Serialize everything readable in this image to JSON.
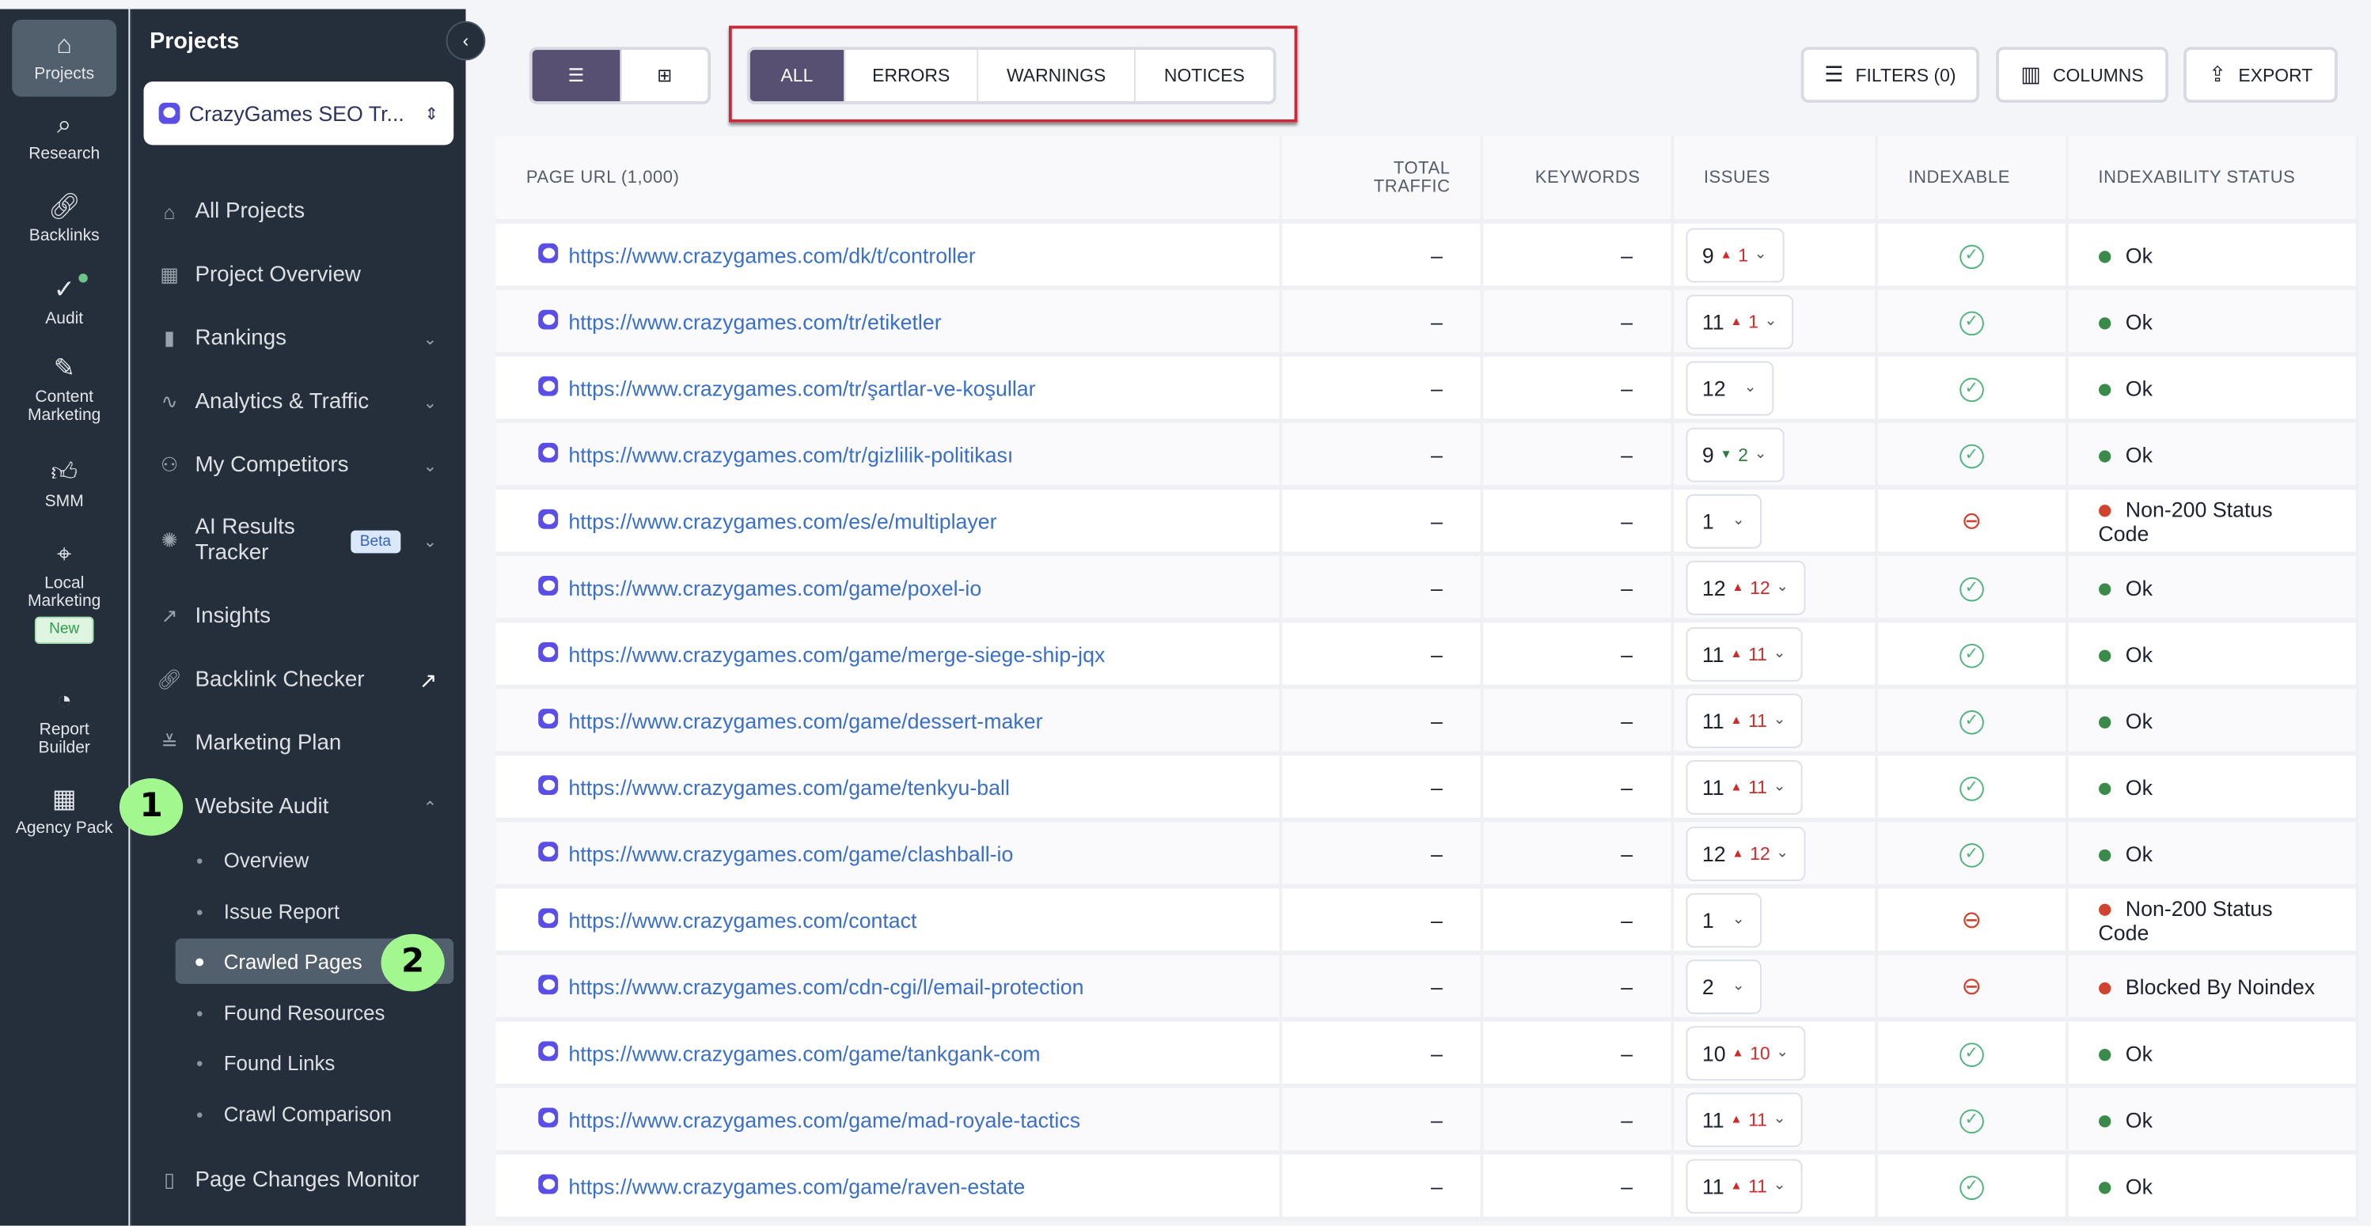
{
  "rail": [
    {
      "label": "Projects",
      "icon": "home-icon",
      "active": true
    },
    {
      "label": "Research",
      "icon": "laptop-search-icon"
    },
    {
      "label": "Backlinks",
      "icon": "link-icon"
    },
    {
      "label": "Audit",
      "icon": "check-circle-icon"
    },
    {
      "label": "Content Marketing",
      "icon": "edit-icon"
    },
    {
      "label": "SMM",
      "icon": "thumbs-up-icon"
    },
    {
      "label": "Local Marketing",
      "icon": "map-pin-icon",
      "badge": "New"
    },
    {
      "label": "Report Builder",
      "icon": "pie-chart-icon"
    },
    {
      "label": "Agency Pack",
      "icon": "building-icon"
    }
  ],
  "sidebar": {
    "title": "Projects",
    "project": "CrazyGames SEO Tr...",
    "items": [
      {
        "label": "All Projects",
        "icon": "home-icon"
      },
      {
        "label": "Project Overview",
        "icon": "grid-icon"
      },
      {
        "label": "Rankings",
        "icon": "bar-chart-icon",
        "chevron": "down"
      },
      {
        "label": "Analytics & Traffic",
        "icon": "pulse-icon",
        "chevron": "down"
      },
      {
        "label": "My Competitors",
        "icon": "users-icon",
        "chevron": "down"
      },
      {
        "label": "AI Results Tracker",
        "icon": "ai-icon",
        "chevron": "down",
        "badge": "Beta"
      },
      {
        "label": "Insights",
        "icon": "trend-icon"
      },
      {
        "label": "Backlink Checker",
        "icon": "link-icon",
        "chevron": "external"
      },
      {
        "label": "Marketing Plan",
        "icon": "checklist-icon"
      },
      {
        "label": "Website Audit",
        "icon": "audit-icon",
        "chevron": "up"
      }
    ],
    "subitems": [
      {
        "label": "Overview"
      },
      {
        "label": "Issue Report"
      },
      {
        "label": "Crawled Pages",
        "active": true
      },
      {
        "label": "Found Resources"
      },
      {
        "label": "Found Links"
      },
      {
        "label": "Crawl Comparison"
      }
    ],
    "footer_item": {
      "label": "Page Changes Monitor",
      "icon": "split-panel-icon"
    },
    "markers": [
      "1",
      "2"
    ]
  },
  "toolbar": {
    "filter_tabs": [
      "ALL",
      "ERRORS",
      "WARNINGS",
      "NOTICES"
    ],
    "active_tab": "ALL",
    "filters": "FILTERS (0)",
    "columns": "COLUMNS",
    "export": "EXPORT"
  },
  "colors": {
    "accent": "#575072",
    "link": "#3a6fc8",
    "ok": "#3a8a4a",
    "error": "#d0442f",
    "highlight": "#c82a3a",
    "marker": "#a3f78f"
  },
  "table": {
    "headers": [
      "PAGE URL  (1,000)",
      "TOTAL TRAFFIC",
      "KEYWORDS",
      "ISSUES",
      "INDEXABLE",
      "INDEXABILITY STATUS"
    ],
    "rows": [
      {
        "url": "https://www.crazygames.com/dk/t/controller",
        "traffic": "–",
        "keywords": "–",
        "issues": "9",
        "dir": "up",
        "delta": "1",
        "indexable": true,
        "status": "Ok"
      },
      {
        "url": "https://www.crazygames.com/tr/etiketler",
        "traffic": "–",
        "keywords": "–",
        "issues": "11",
        "dir": "up",
        "delta": "1",
        "indexable": true,
        "status": "Ok"
      },
      {
        "url": "https://www.crazygames.com/tr/şartlar-ve-koşullar",
        "traffic": "–",
        "keywords": "–",
        "issues": "12",
        "dir": "",
        "delta": "",
        "indexable": true,
        "status": "Ok"
      },
      {
        "url": "https://www.crazygames.com/tr/gizlilik-politikası",
        "traffic": "–",
        "keywords": "–",
        "issues": "9",
        "dir": "down",
        "delta": "2",
        "indexable": true,
        "status": "Ok"
      },
      {
        "url": "https://www.crazygames.com/es/e/multiplayer",
        "traffic": "–",
        "keywords": "–",
        "issues": "1",
        "dir": "",
        "delta": "",
        "indexable": false,
        "status": "Non-200 Status Code"
      },
      {
        "url": "https://www.crazygames.com/game/poxel-io",
        "traffic": "–",
        "keywords": "–",
        "issues": "12",
        "dir": "up",
        "delta": "12",
        "indexable": true,
        "status": "Ok"
      },
      {
        "url": "https://www.crazygames.com/game/merge-siege-ship-jqx",
        "traffic": "–",
        "keywords": "–",
        "issues": "11",
        "dir": "up",
        "delta": "11",
        "indexable": true,
        "status": "Ok"
      },
      {
        "url": "https://www.crazygames.com/game/dessert-maker",
        "traffic": "–",
        "keywords": "–",
        "issues": "11",
        "dir": "up",
        "delta": "11",
        "indexable": true,
        "status": "Ok"
      },
      {
        "url": "https://www.crazygames.com/game/tenkyu-ball",
        "traffic": "–",
        "keywords": "–",
        "issues": "11",
        "dir": "up",
        "delta": "11",
        "indexable": true,
        "status": "Ok"
      },
      {
        "url": "https://www.crazygames.com/game/clashball-io",
        "traffic": "–",
        "keywords": "–",
        "issues": "12",
        "dir": "up",
        "delta": "12",
        "indexable": true,
        "status": "Ok"
      },
      {
        "url": "https://www.crazygames.com/contact",
        "traffic": "–",
        "keywords": "–",
        "issues": "1",
        "dir": "",
        "delta": "",
        "indexable": false,
        "status": "Non-200 Status Code"
      },
      {
        "url": "https://www.crazygames.com/cdn-cgi/l/email-protection",
        "traffic": "–",
        "keywords": "–",
        "issues": "2",
        "dir": "",
        "delta": "",
        "indexable": false,
        "status": "Blocked By Noindex"
      },
      {
        "url": "https://www.crazygames.com/game/tankgank-com",
        "traffic": "–",
        "keywords": "–",
        "issues": "10",
        "dir": "up",
        "delta": "10",
        "indexable": true,
        "status": "Ok"
      },
      {
        "url": "https://www.crazygames.com/game/mad-royale-tactics",
        "traffic": "–",
        "keywords": "–",
        "issues": "11",
        "dir": "up",
        "delta": "11",
        "indexable": true,
        "status": "Ok"
      },
      {
        "url": "https://www.crazygames.com/game/raven-estate",
        "traffic": "–",
        "keywords": "–",
        "issues": "11",
        "dir": "up",
        "delta": "11",
        "indexable": true,
        "status": "Ok"
      }
    ]
  }
}
